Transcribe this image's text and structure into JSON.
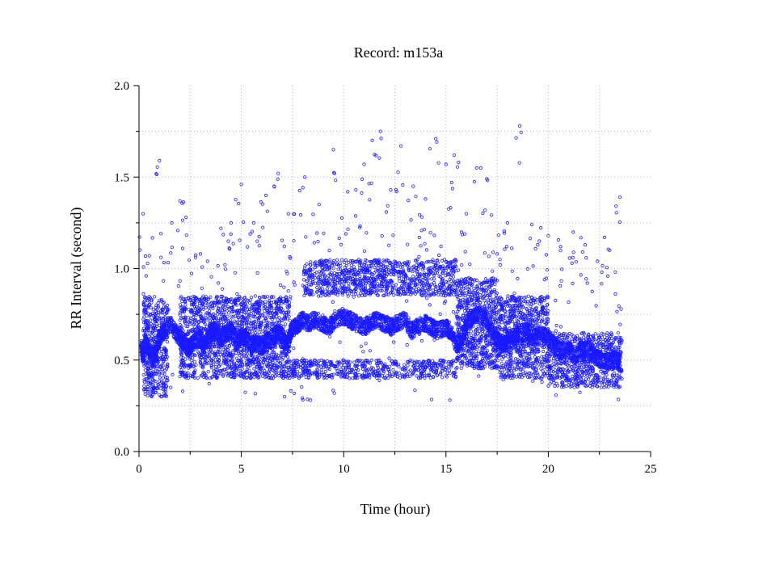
{
  "chart_data": {
    "type": "scatter",
    "title": "Record:  m153a",
    "xlabel": "Time (hour)",
    "ylabel": "RR Interval (second)",
    "xlim": [
      0,
      25
    ],
    "ylim": [
      0.0,
      2.0
    ],
    "xticks": [
      0,
      5,
      10,
      15,
      20,
      25
    ],
    "yticks": [
      0.0,
      0.5,
      1.0,
      1.5,
      2.0
    ],
    "xtick_labels": [
      "0",
      "5",
      "10",
      "15",
      "20",
      "25"
    ],
    "ytick_labels": [
      "0.0",
      "0.5",
      "1.0",
      "1.5",
      "2.0"
    ],
    "grid": true,
    "marker_color": "#1a1aff",
    "series": [
      {
        "x": [
          0.1,
          0.2,
          0.3,
          0.5,
          0.7,
          0.9,
          1.0,
          1.2,
          1.5,
          1.8,
          2.0,
          2.2,
          2.4,
          2.5,
          2.7,
          3.0,
          3.2,
          3.5,
          3.7,
          4.0,
          4.2,
          4.5,
          4.8,
          5.0,
          5.2,
          5.5,
          5.7,
          6.0,
          6.2,
          6.5,
          6.8,
          7.0,
          7.2,
          7.4,
          7.6,
          7.8,
          8.0,
          8.3,
          8.6,
          9.0,
          9.3,
          9.6,
          10.0,
          10.3,
          10.6,
          11.0,
          11.3,
          11.6,
          12.0,
          12.3,
          12.6,
          13.0,
          13.3,
          13.6,
          14.0,
          14.3,
          14.6,
          15.0,
          15.2,
          15.5,
          15.8,
          16.0,
          16.3,
          16.6,
          17.0,
          17.3,
          17.6,
          17.8,
          18.0,
          18.3,
          18.6,
          19.0,
          19.3,
          19.6,
          20.0,
          20.3,
          20.6,
          21.0,
          21.3,
          21.6,
          22.0,
          22.3,
          22.6,
          23.0,
          23.3,
          23.5
        ],
        "y": [
          0.57,
          0.52,
          0.6,
          0.55,
          0.5,
          0.58,
          0.62,
          0.66,
          0.7,
          0.65,
          0.62,
          0.6,
          0.56,
          0.58,
          0.6,
          0.62,
          0.58,
          0.64,
          0.66,
          0.62,
          0.64,
          0.66,
          0.6,
          0.63,
          0.62,
          0.58,
          0.6,
          0.57,
          0.6,
          0.62,
          0.65,
          0.63,
          0.57,
          0.65,
          0.68,
          0.7,
          0.72,
          0.7,
          0.72,
          0.7,
          0.68,
          0.72,
          0.74,
          0.72,
          0.7,
          0.68,
          0.7,
          0.72,
          0.7,
          0.68,
          0.7,
          0.72,
          0.66,
          0.68,
          0.7,
          0.68,
          0.66,
          0.68,
          0.66,
          0.58,
          0.62,
          0.7,
          0.74,
          0.76,
          0.72,
          0.64,
          0.6,
          0.58,
          0.6,
          0.62,
          0.64,
          0.66,
          0.62,
          0.64,
          0.62,
          0.58,
          0.55,
          0.56,
          0.52,
          0.56,
          0.55,
          0.52,
          0.5,
          0.49,
          0.5,
          0.48
        ]
      }
    ],
    "band_regions": [
      {
        "x": [
          0.2,
          1.4
        ],
        "y": [
          0.3,
          0.85
        ]
      },
      {
        "x": [
          2.0,
          7.4
        ],
        "y": [
          0.4,
          0.85
        ]
      },
      {
        "x": [
          7.4,
          15.5
        ],
        "y": [
          0.4,
          0.5
        ]
      },
      {
        "x": [
          8.0,
          15.5
        ],
        "y": [
          0.85,
          1.05
        ]
      },
      {
        "x": [
          15.5,
          17.6
        ],
        "y": [
          0.45,
          0.95
        ]
      },
      {
        "x": [
          17.6,
          20.0
        ],
        "y": [
          0.4,
          0.85
        ]
      },
      {
        "x": [
          20.0,
          23.6
        ],
        "y": [
          0.35,
          0.65
        ]
      }
    ],
    "outliers_x": [
      0.2,
      0.5,
      1.0,
      1.6,
      2.0,
      2.3,
      3.0,
      4.0,
      4.5,
      5.0,
      5.6,
      6.2,
      6.8,
      7.3,
      8.1,
      8.8,
      9.5,
      10.2,
      10.6,
      11.0,
      11.4,
      11.8,
      12.3,
      12.8,
      13.4,
      14.0,
      14.5,
      15.0,
      15.4,
      16.0,
      16.5,
      17.0,
      17.5,
      18.0,
      18.6,
      19.2,
      20.0,
      20.6,
      21.2,
      21.8,
      22.4,
      23.0,
      23.5
    ],
    "outliers_y": [
      1.3,
      1.07,
      1.59,
      1.25,
      1.37,
      1.28,
      1.08,
      1.22,
      1.25,
      1.46,
      1.25,
      1.4,
      1.52,
      1.3,
      1.5,
      1.35,
      1.65,
      1.42,
      1.43,
      1.57,
      1.7,
      1.75,
      1.43,
      1.67,
      1.45,
      1.38,
      1.71,
      1.57,
      1.62,
      1.3,
      1.55,
      1.49,
      1.08,
      1.25,
      1.78,
      1.24,
      1.18,
      1.12,
      1.06,
      1.13,
      1.04,
      1.1,
      1.39
    ]
  }
}
